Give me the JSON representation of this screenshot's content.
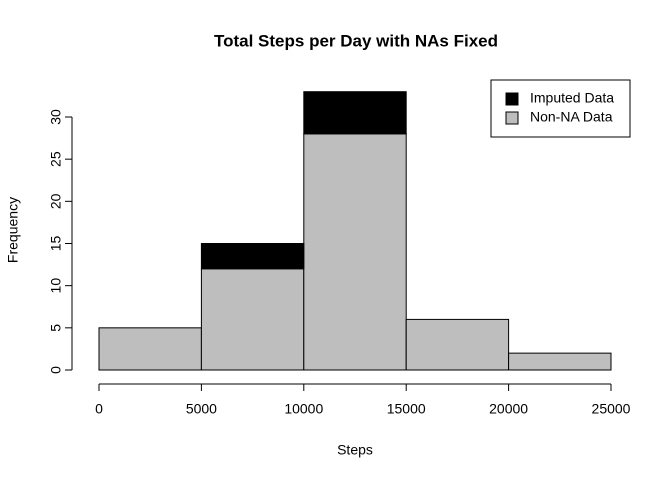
{
  "chart_data": {
    "type": "histogram",
    "title": "Total Steps per Day with NAs Fixed",
    "x_label": "Steps",
    "y_label": "Frequency",
    "bins": [
      0,
      5000,
      10000,
      15000,
      20000,
      25000
    ],
    "series": [
      {
        "name": "Non-NA Data",
        "color": "#bebebe",
        "values": [
          5,
          12,
          28,
          6,
          2
        ]
      },
      {
        "name": "Imputed Data",
        "color": "#000000",
        "values": [
          0,
          3,
          5,
          0,
          0
        ]
      }
    ],
    "legend_order": [
      1,
      0
    ],
    "legend_position": "top-right",
    "xlim": [
      0,
      25000
    ],
    "xticks": [
      0,
      5000,
      10000,
      15000,
      20000,
      25000
    ],
    "ylim": [
      0,
      30
    ],
    "yticks": [
      0,
      5,
      10,
      15,
      20,
      25,
      30
    ]
  }
}
